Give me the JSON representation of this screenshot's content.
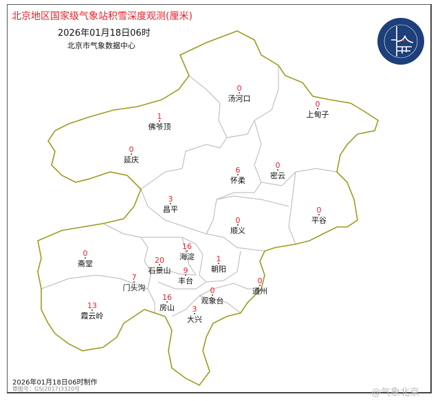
{
  "title": "北京地区国家级气象站积雪深度观测(厘米)",
  "datetime": "2026年01月18日06时",
  "issuer": "北京市气象数据中心",
  "footer": {
    "made": "2026年01月18日06时制作",
    "approval": "审图号：GS(2017)3320号"
  },
  "watermark": "@气象北京",
  "logo": {
    "text": "BEIJING METEOROLOGICAL SERVICE",
    "cn": "北京市气象局"
  },
  "colors": {
    "value": "#e8202a",
    "border": "#9c9a1c",
    "district": "#b5b5b5"
  },
  "stations": [
    {
      "name": "汤河口",
      "value": "0"
    },
    {
      "name": "上甸子",
      "value": "0"
    },
    {
      "name": "佛爷顶",
      "value": "1"
    },
    {
      "name": "延庆",
      "value": "0"
    },
    {
      "name": "怀柔",
      "value": "6"
    },
    {
      "name": "密云",
      "value": "0"
    },
    {
      "name": "昌平",
      "value": "3"
    },
    {
      "name": "平谷",
      "value": "0"
    },
    {
      "name": "顺义",
      "value": "0"
    },
    {
      "name": "斋堂",
      "value": "0"
    },
    {
      "name": "海淀",
      "value": "16"
    },
    {
      "name": "朝阳",
      "value": "1"
    },
    {
      "name": "石景山",
      "value": "20"
    },
    {
      "name": "门头沟",
      "value": "7"
    },
    {
      "name": "丰台",
      "value": "9"
    },
    {
      "name": "通州",
      "value": "0"
    },
    {
      "name": "观象台",
      "value": "0"
    },
    {
      "name": "房山",
      "value": "16"
    },
    {
      "name": "霞云岭",
      "value": "13"
    },
    {
      "name": "大兴",
      "value": "3"
    }
  ]
}
